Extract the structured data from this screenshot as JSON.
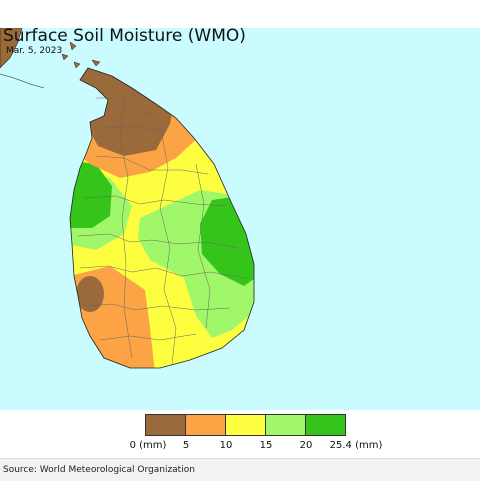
{
  "header": {
    "title": "Surface Soil Moisture (WMO)",
    "date": "Mar. 5, 2023"
  },
  "map": {
    "ocean_color": "#c9fbff",
    "land_colors": {
      "brown": "#9a6a3a",
      "orange": "#fca346",
      "yellow": "#fefe41",
      "light_green": "#a1f76a",
      "green": "#34c41a"
    }
  },
  "legend": {
    "colors": [
      "#9a6a3a",
      "#fca346",
      "#fefe41",
      "#a1f76a",
      "#34c41a"
    ],
    "ticks": [
      "0 (mm)",
      "5",
      "10",
      "15",
      "20",
      "25.4 (mm)"
    ]
  },
  "footer": {
    "source": "Source: World Meteorological Organization"
  }
}
